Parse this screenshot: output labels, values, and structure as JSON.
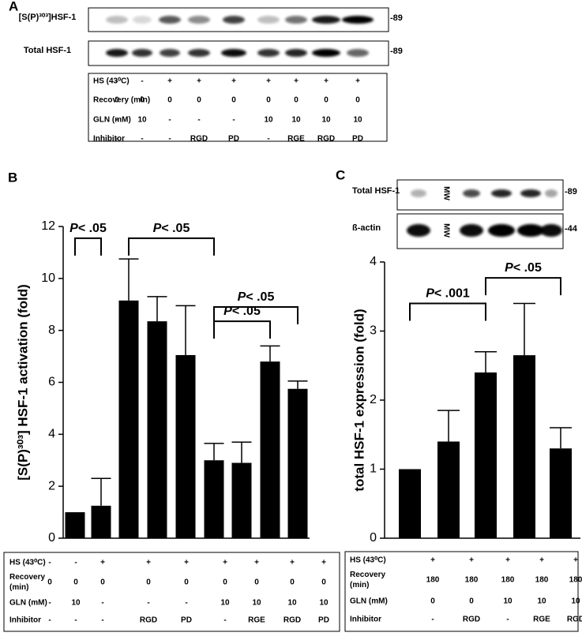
{
  "panels": {
    "a": "A",
    "b": "B",
    "c": "C"
  },
  "blots": {
    "a": [
      {
        "label": "[S(P)³⁰³]HSF-1",
        "mw": "-89"
      },
      {
        "label": "Total HSF-1",
        "mw": "-89"
      }
    ],
    "c": [
      {
        "label": "Total HSF-1",
        "mw": "-89",
        "lane_text": "MW"
      },
      {
        "label": "ß-actin",
        "mw": "-44",
        "lane_text": "MW"
      }
    ]
  },
  "tables": {
    "a": {
      "rows": [
        {
          "label": [
            "HS (43⁰C)"
          ],
          "cells": [
            "-",
            "-",
            "+",
            "+",
            "+",
            "+",
            "+",
            "+",
            "+"
          ]
        },
        {
          "label": [
            "Recovery (min)"
          ],
          "cells": [
            "0",
            "0",
            "0",
            "0",
            "0",
            "0",
            "0",
            "0",
            "0"
          ]
        },
        {
          "label": [
            "GLN (mM)"
          ],
          "cells": [
            "-",
            "10",
            "-",
            "-",
            "-",
            "10",
            "10",
            "10",
            "10"
          ]
        },
        {
          "label": [
            "Inhibitor"
          ],
          "cells": [
            "-",
            "-",
            "-",
            "RGD",
            "PD",
            "-",
            "RGE",
            "RGD",
            "PD"
          ]
        }
      ]
    },
    "b": {
      "rows": [
        {
          "label": [
            "HS (43⁰C)"
          ],
          "cells": [
            "-",
            "-",
            "+",
            "+",
            "+",
            "+",
            "+",
            "+",
            "+"
          ]
        },
        {
          "label": [
            "Recovery",
            "(min)"
          ],
          "cells": [
            "0",
            "0",
            "0",
            "0",
            "0",
            "0",
            "0",
            "0",
            "0"
          ]
        },
        {
          "label": [
            "GLN (mM)"
          ],
          "cells": [
            "-",
            "10",
            "-",
            "-",
            "-",
            "10",
            "10",
            "10",
            "10"
          ]
        },
        {
          "label": [
            "Inhibitor"
          ],
          "cells": [
            "-",
            "-",
            "-",
            "RGD",
            "PD",
            "-",
            "RGE",
            "RGD",
            "PD"
          ]
        }
      ]
    },
    "c": {
      "rows": [
        {
          "label": [
            "HS (43⁰C)"
          ],
          "cells": [
            "+",
            "+",
            "+",
            "+",
            "+"
          ]
        },
        {
          "label": [
            "Recovery",
            "(min)"
          ],
          "cells": [
            "180",
            "180",
            "180",
            "180",
            "180"
          ]
        },
        {
          "label": [
            "GLN (mM)"
          ],
          "cells": [
            "0",
            "0",
            "10",
            "10",
            "10"
          ]
        },
        {
          "label": [
            "Inhibitor"
          ],
          "cells": [
            "-",
            "RGD",
            "-",
            "RGE",
            "RGD"
          ]
        }
      ]
    }
  },
  "chart_data": [
    {
      "type": "bar",
      "ylabel": "[S(P)³⁰³] HSF-1 activation (fold)",
      "values": [
        1.0,
        1.25,
        9.15,
        8.35,
        7.05,
        3.0,
        2.9,
        6.8,
        5.75
      ],
      "errors": [
        null,
        1.05,
        1.6,
        0.95,
        1.9,
        0.65,
        0.8,
        0.6,
        0.3
      ],
      "color": "#000000",
      "ylim": [
        0,
        12
      ],
      "yticks": [
        0,
        2,
        4,
        6,
        8,
        10,
        12
      ],
      "annotations": [
        "P< .05",
        "P< .05",
        "P< .05",
        "P< .05"
      ]
    },
    {
      "type": "bar",
      "ylabel": "total HSF-1 expression (fold)",
      "values": [
        1.0,
        1.4,
        2.4,
        2.65,
        1.3
      ],
      "errors": [
        null,
        0.45,
        0.3,
        0.75,
        0.3
      ],
      "color": "#000000",
      "ylim": [
        0,
        4
      ],
      "yticks": [
        0,
        1,
        2,
        3,
        4
      ],
      "annotations": [
        "P< .001",
        "P< .05"
      ]
    }
  ]
}
